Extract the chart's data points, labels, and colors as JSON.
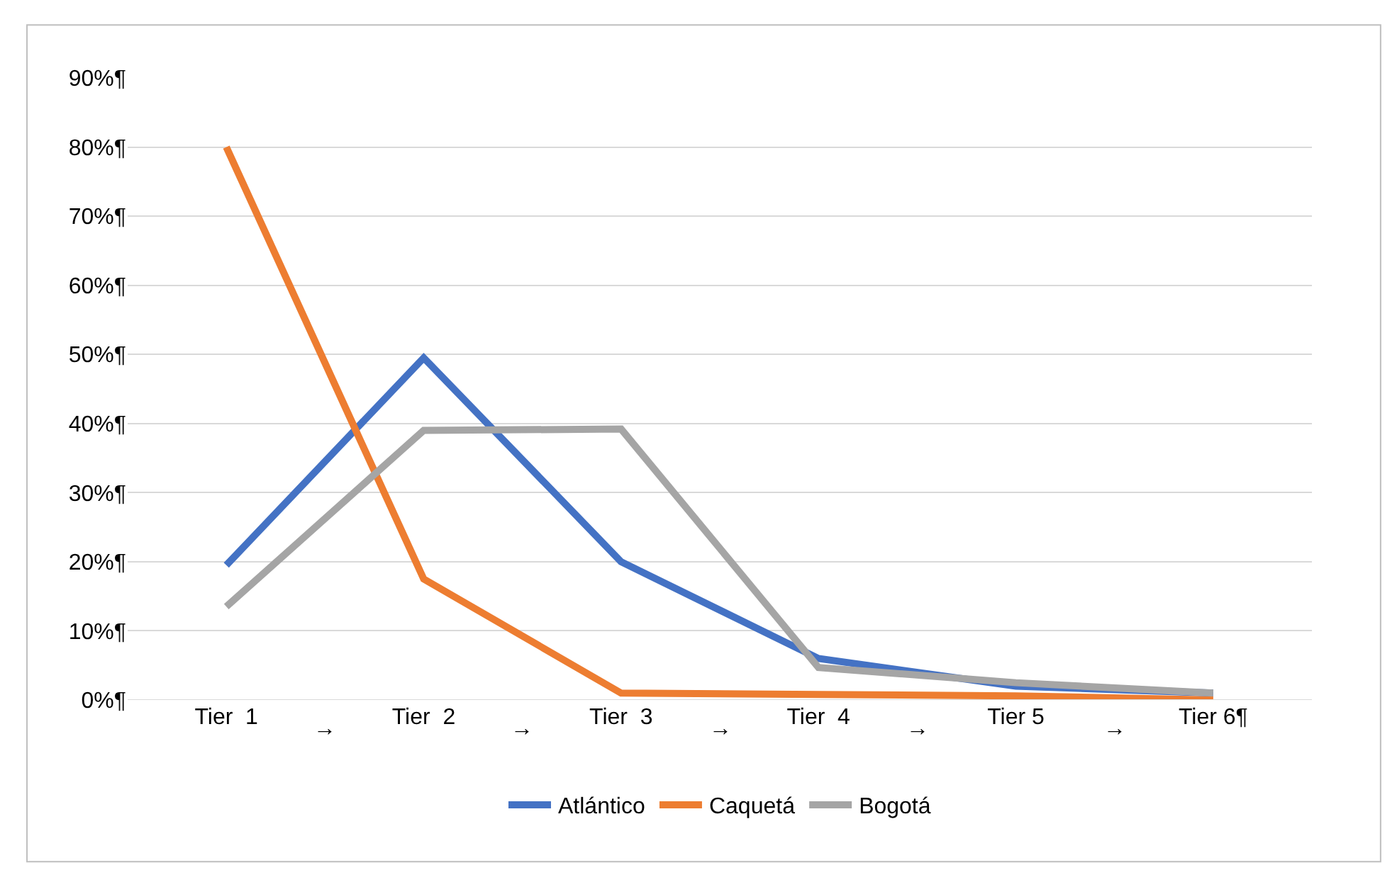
{
  "chart_data": {
    "type": "line",
    "categories": [
      "Tier  1",
      "Tier  2",
      "Tier  3",
      "Tier  4",
      "Tier 5",
      "Tier 6¶"
    ],
    "series": [
      {
        "name": "Atlántico",
        "color": "#4472c4",
        "values": [
          19.5,
          49.5,
          20,
          6,
          2,
          1
        ]
      },
      {
        "name": "Caquetá",
        "color": "#ed7d31",
        "values": [
          80,
          17.5,
          1,
          0.8,
          0.6,
          0
        ]
      },
      {
        "name": "Bogotá",
        "color": "#a5a5a5",
        "values": [
          13.5,
          39,
          39.2,
          4.7,
          2.5,
          1
        ]
      }
    ],
    "annotations": [
      "→",
      "→",
      "→",
      "→",
      "→"
    ],
    "ylim": [
      0,
      90
    ],
    "yticks": [
      {
        "value": 0,
        "label": "0%¶"
      },
      {
        "value": 10,
        "label": "10%¶"
      },
      {
        "value": 20,
        "label": "20%¶"
      },
      {
        "value": 30,
        "label": "30%¶"
      },
      {
        "value": 40,
        "label": "40%¶"
      },
      {
        "value": 50,
        "label": "50%¶"
      },
      {
        "value": 60,
        "label": "60%¶"
      },
      {
        "value": 70,
        "label": "70%¶"
      },
      {
        "value": 80,
        "label": "80%¶"
      },
      {
        "value": 90,
        "label": "90%¶"
      }
    ],
    "grid": "y",
    "legend": "bottom",
    "marker": "none",
    "line_style": "solid"
  }
}
